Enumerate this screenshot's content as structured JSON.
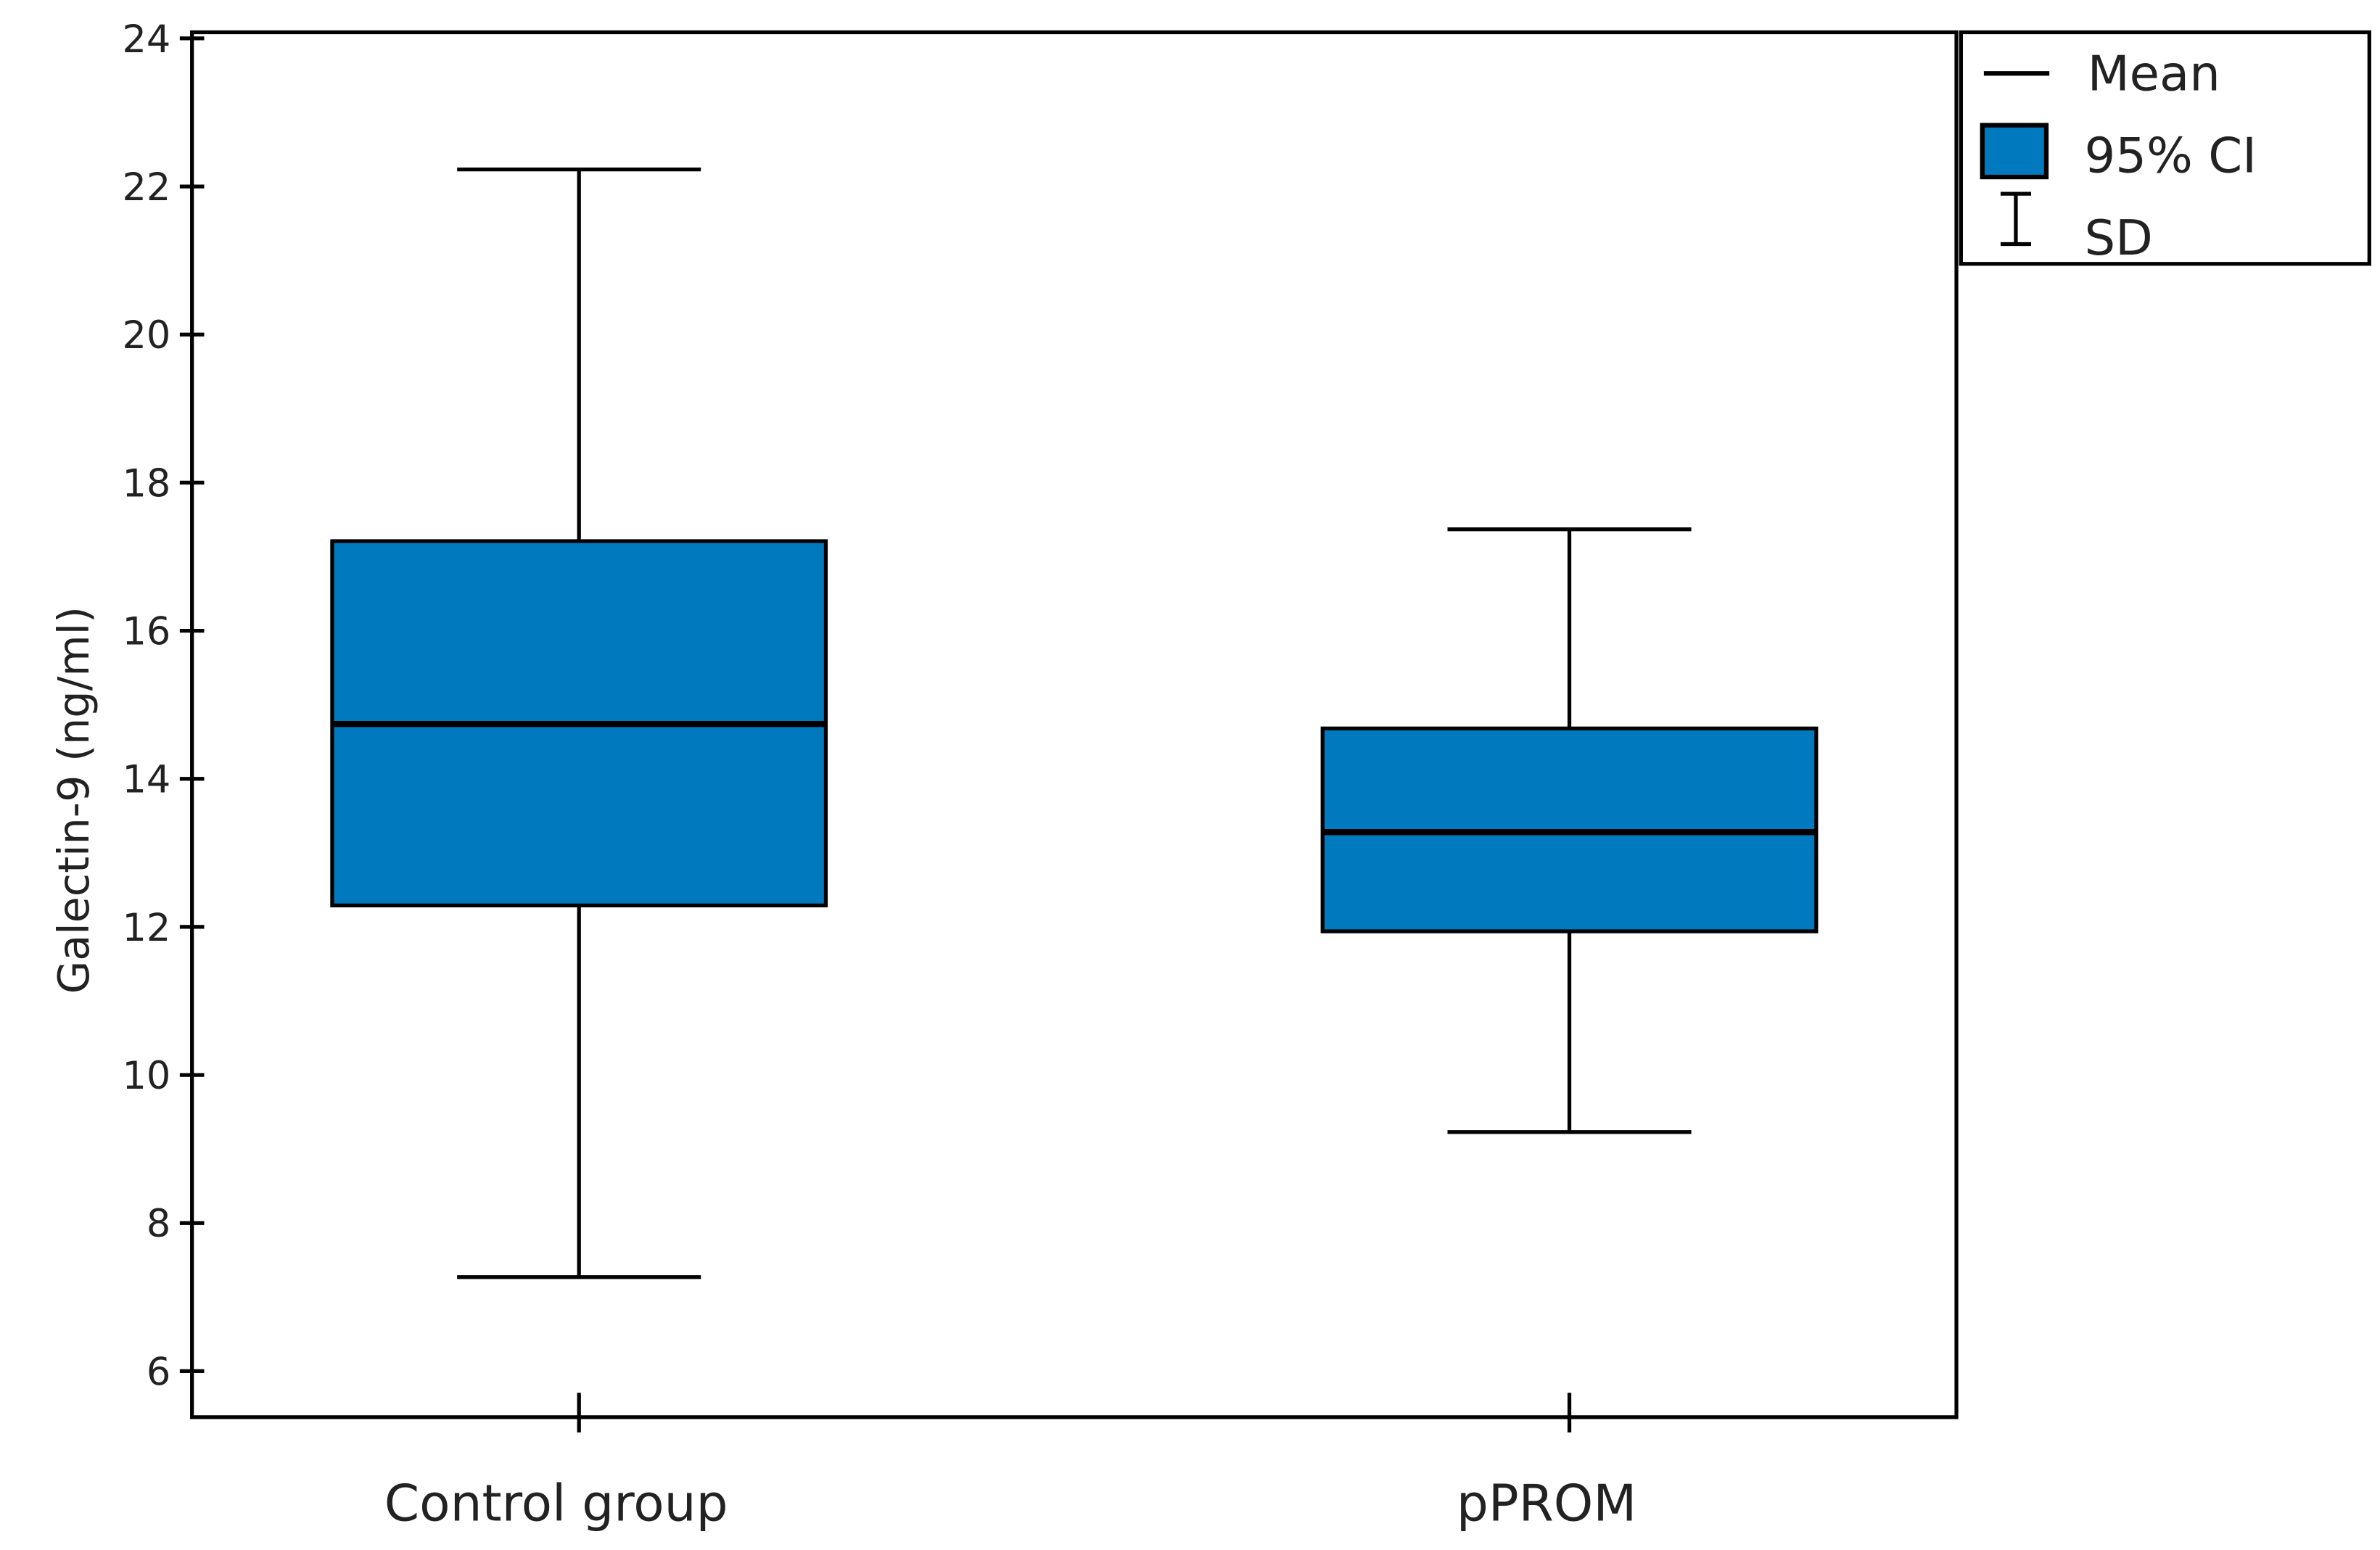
{
  "chart_data": {
    "type": "box",
    "ylabel": "Galectin-9 (ng/ml)",
    "xlabel": "",
    "ylim": [
      5.4,
      24.1
    ],
    "yticks": [
      6,
      8,
      10,
      12,
      14,
      16,
      18,
      20,
      22,
      24
    ],
    "categories": [
      "Control group",
      "pPROM"
    ],
    "groups": [
      {
        "name": "Control group",
        "mean": 14.74,
        "ci_low": 12.29,
        "ci_high": 17.21,
        "sd_low": 7.27,
        "sd_high": 22.23
      },
      {
        "name": "pPROM",
        "mean": 13.28,
        "ci_low": 11.94,
        "ci_high": 14.68,
        "sd_low": 9.23,
        "sd_high": 17.37
      }
    ],
    "legend": {
      "placement": "top-right",
      "entries": [
        {
          "label": "Mean",
          "symbol": "line"
        },
        {
          "label": "95% CI",
          "symbol": "box"
        },
        {
          "label": "SD",
          "symbol": "errorbar"
        }
      ]
    },
    "grid": false,
    "colors": {
      "box_fill": "#0079bf",
      "line": "#000000"
    }
  }
}
